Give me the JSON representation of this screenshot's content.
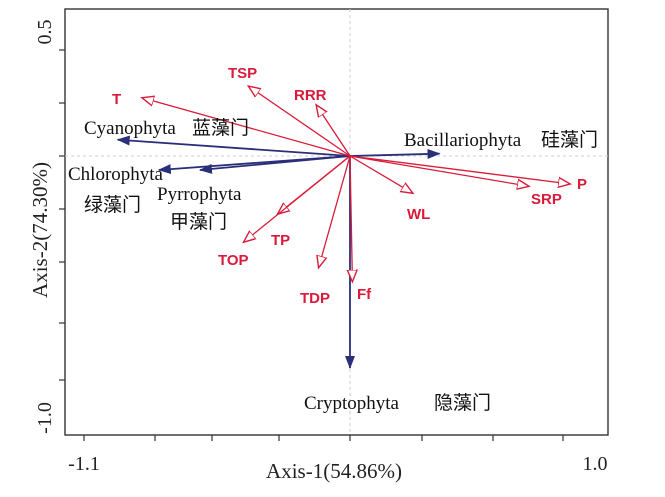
{
  "chart_data": {
    "type": "scatter",
    "plot_kind": "RDA biplot",
    "xlabel": "Axis-1(54.86%)",
    "ylabel": "Axis-2(74.30%)",
    "xlim": [
      -1.15,
      1.1
    ],
    "ylim": [
      -1.15,
      0.62
    ],
    "x_tick_labels": [
      "-1.1",
      "1.0"
    ],
    "y_tick_labels": [
      "0.5",
      "-1.0"
    ],
    "grid": false,
    "reference_lines": "dashed lines at x=0 and y=0",
    "colors": {
      "environment": "#d81b3a",
      "species": "#2a2f7a"
    },
    "environment_vectors": [
      {
        "name": "T",
        "x": -0.86,
        "y": 0.25
      },
      {
        "name": "TSP",
        "x": -0.42,
        "y": 0.3
      },
      {
        "name": "RRR",
        "x": -0.14,
        "y": 0.22
      },
      {
        "name": "P",
        "x": 0.91,
        "y": -0.12
      },
      {
        "name": "SRP",
        "x": 0.74,
        "y": -0.13
      },
      {
        "name": "WL",
        "x": 0.26,
        "y": -0.16
      },
      {
        "name": "TP",
        "x": -0.3,
        "y": -0.25
      },
      {
        "name": "TOP",
        "x": -0.44,
        "y": -0.37
      },
      {
        "name": "TDP",
        "x": -0.13,
        "y": -0.48
      },
      {
        "name": "Ff",
        "x": 0.01,
        "y": -0.54
      }
    ],
    "species_vectors": [
      {
        "name": "Cyanophyta",
        "cn": "蓝藻门",
        "x": -0.96,
        "y": 0.07
      },
      {
        "name": "Chlorophyta",
        "cn": "绿藻门",
        "x": -0.79,
        "y": -0.06
      },
      {
        "name": "Pyrrophyta",
        "cn": "甲藻门",
        "x": -0.62,
        "y": -0.06
      },
      {
        "name": "Bacillariophyta",
        "cn": "硅藻门",
        "x": 0.37,
        "y": 0.01
      },
      {
        "name": "Cryptophyta",
        "cn": "隐藻门",
        "x": 0.0,
        "y": -0.91
      }
    ]
  }
}
